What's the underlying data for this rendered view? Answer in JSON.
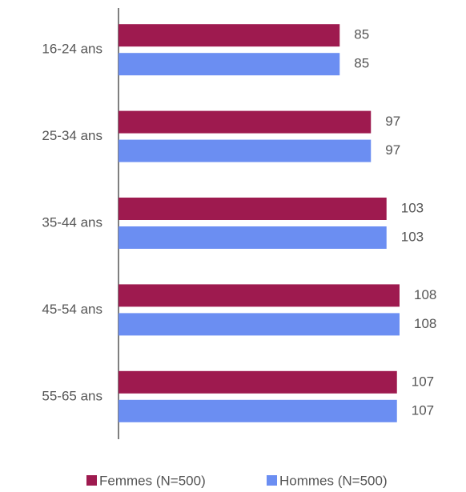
{
  "chart_data": {
    "type": "bar",
    "orientation": "horizontal",
    "categories": [
      "16-24 ans",
      "25-34 ans",
      "35-44 ans",
      "45-54 ans",
      "55-65 ans"
    ],
    "series": [
      {
        "name": "Femmes (N=500)",
        "color": "#9e1a4f",
        "values": [
          85,
          97,
          103,
          108,
          107
        ]
      },
      {
        "name": "Hommes (N=500)",
        "color": "#6b8ef2",
        "values": [
          85,
          97,
          103,
          108,
          107
        ]
      }
    ],
    "legend": "bottom"
  }
}
